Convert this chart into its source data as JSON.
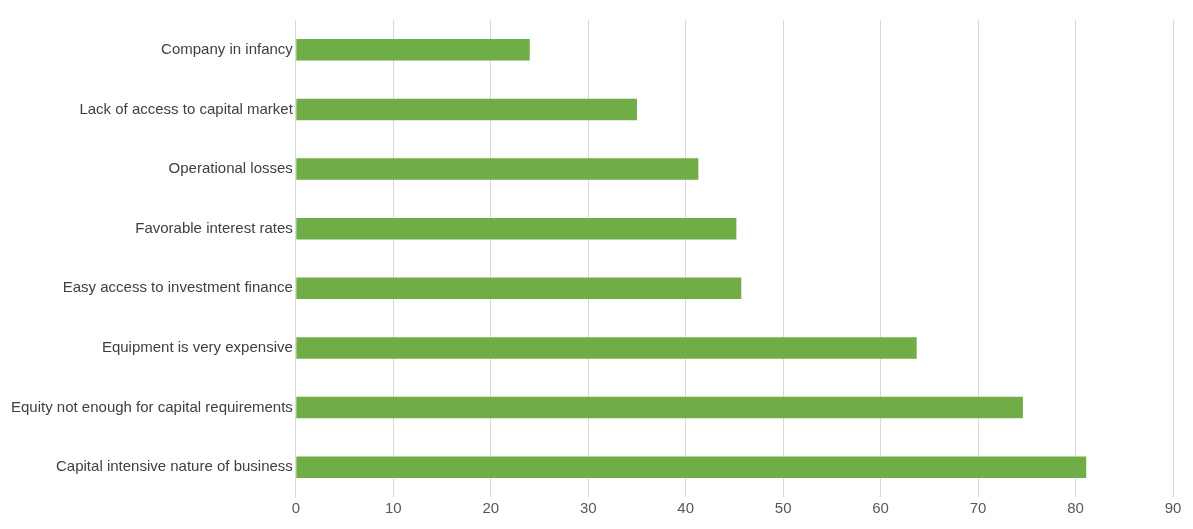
{
  "chart_data": {
    "type": "bar",
    "orientation": "horizontal",
    "categories": [
      "Company in infancy",
      "Lack of access to capital market",
      "Operational losses",
      "Favorable interest rates",
      "Easy access to investment finance",
      "Equipment is very expensive",
      "Equity not enough for capital requirements",
      "Capital intensive nature of business"
    ],
    "values": [
      24,
      35,
      41.3,
      45.2,
      45.7,
      63.7,
      74.6,
      81.1
    ],
    "color": "#70ad47",
    "xlim": [
      0,
      90
    ],
    "xticks": [
      0,
      10,
      20,
      30,
      40,
      50,
      60,
      70,
      80,
      90
    ],
    "grid": "x",
    "legend": false
  }
}
